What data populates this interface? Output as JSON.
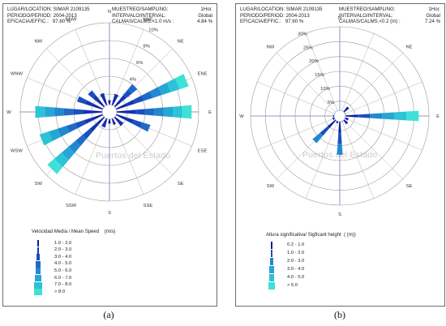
{
  "panels": [
    {
      "id": "a",
      "caption": "(a)",
      "header": {
        "location_label": "LUGAR/LOCATION:",
        "location_value": "SIMAR 2109135",
        "period_label": "PERIODO/PERIOD:",
        "period_value": "2004-2013",
        "efficacy_label": "EFICACIA/EFFIC.:",
        "efficacy_value": "97.60 %",
        "sampling_label": "MUESTREO/SAMPLING:",
        "sampling_value": "1Hor.",
        "interval_label": "INTERVALO/INTERVAL:",
        "interval_value": "Global",
        "calms_label": "CALMAS/CALMS.<1.0 m/s :",
        "calms_value": "4.84 %"
      },
      "watermark": "Puertos del Estado",
      "legend": {
        "title_1": "Velocidad Media",
        "title_sep": "/",
        "title_2": "Mean Speed",
        "unit": "(m/s)",
        "classes": [
          "1.0 - 2.0",
          "2.0 - 3.0",
          "3.0 - 4.0",
          "4.0 - 5.0",
          "5.0 - 6.0",
          "6.0 - 7.0",
          "7.0 - 8.0",
          "> 8.0"
        ]
      }
    },
    {
      "id": "b",
      "caption": "(b)",
      "header": {
        "location_label": "LUGAR/LOCATION:",
        "location_value": "SIMAR 2109135",
        "period_label": "PERIODO/PERIOD:",
        "period_value": "2004-2013",
        "efficacy_label": "EFICACIA/EFFIC.:",
        "efficacy_value": "97.60 %",
        "sampling_label": "MUESTREO/SAMPLING:",
        "sampling_value": "1Hor.",
        "interval_label": "INTERVALO/INTERVAL:",
        "interval_value": "Global",
        "calms_label": "CALMAS/CALMS.<0.2 (m) :",
        "calms_value": "7.24 %"
      },
      "watermark": "Puertos del Estado",
      "legend": {
        "title": "Altura significativa/ Sigficant height",
        "unit": "( (m))",
        "classes": [
          "0.2 - 1.0",
          "1.0 - 2.0",
          "2.0 - 3.0",
          "3.0 - 4.0",
          "4.0 - 5.0",
          "> 5.0"
        ]
      }
    }
  ],
  "chart_data": [
    {
      "type": "wind rose",
      "panel": "a",
      "directions": [
        "N",
        "NNE",
        "NE",
        "ENE",
        "E",
        "ESE",
        "SE",
        "SSE",
        "S",
        "SSW",
        "SW",
        "WSW",
        "W",
        "WNW",
        "NW",
        "NNW"
      ],
      "radial_unit": "%",
      "radial_ticks": [
        2,
        4,
        6,
        8,
        10
      ],
      "radial_tick_labels": [
        "2%",
        "4%",
        "6%",
        "8%",
        "10%"
      ],
      "rmax": 10,
      "frequency_percent": [
        1.3,
        2.1,
        4.0,
        9.3,
        9.2,
        4.8,
        2.0,
        1.5,
        1.3,
        1.8,
        9.1,
        8.2,
        8.3,
        3.8,
        3.1,
        2.2
      ],
      "speed_classes": [
        "1.0 - 2.0",
        "2.0 - 3.0",
        "3.0 - 4.0",
        "4.0 - 5.0",
        "5.0 - 6.0",
        "6.0 - 7.0",
        "7.0 - 8.0",
        "> 8.0"
      ],
      "colors": [
        "#0d1d9e",
        "#1234b0",
        "#1a4fc0",
        "#1f6ac9",
        "#2288cf",
        "#26a6d4",
        "#2cc3d6",
        "#3fe0d8"
      ],
      "calms_percent": 4.84
    },
    {
      "type": "wave rose",
      "panel": "b",
      "directions": [
        "N",
        "NNE",
        "NE",
        "ENE",
        "E",
        "ESE",
        "SE",
        "SSE",
        "S",
        "SSW",
        "SW",
        "WSW",
        "W",
        "WNW",
        "NW",
        "NNW"
      ],
      "radial_unit": "%",
      "radial_ticks": [
        5,
        10,
        15,
        20,
        25,
        30
      ],
      "radial_tick_labels": [
        "5%",
        "10%",
        "15%",
        "20%",
        "25%",
        "30%"
      ],
      "rmax": 30,
      "frequency_percent": [
        1.0,
        1.5,
        4.0,
        2.0,
        26.5,
        3.0,
        3.5,
        2.0,
        13.0,
        2.5,
        12.0,
        2.5,
        2.2,
        1.0,
        0.8,
        0.8
      ],
      "height_classes": [
        "0.2 - 1.0",
        "1.0 - 2.0",
        "2.0 - 3.0",
        "3.0 - 4.0",
        "4.0 - 5.0",
        "> 5.0"
      ],
      "colors": [
        "#0d1d9e",
        "#1a4fc0",
        "#2288cf",
        "#26a6d4",
        "#2cc3d6",
        "#3fe0d8"
      ],
      "calms_percent": 7.24
    }
  ]
}
